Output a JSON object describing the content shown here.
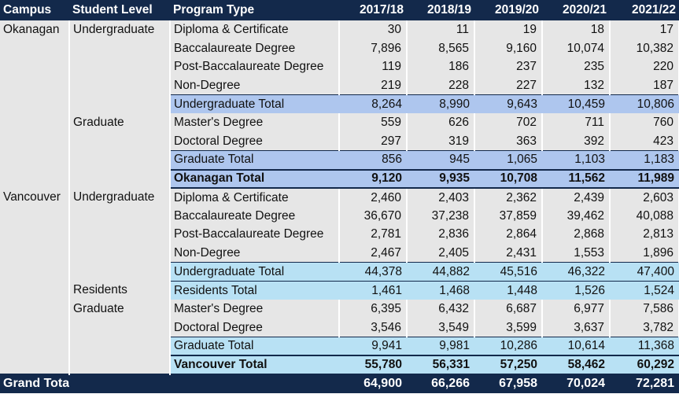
{
  "chart_data": {
    "type": "table",
    "columns": [
      "Campus",
      "Student Level",
      "Program Type",
      "2017/18",
      "2018/19",
      "2019/20",
      "2020/21",
      "2021/22"
    ],
    "rows": [
      {
        "campus": "Okanagan",
        "level": "Undergraduate",
        "program": "Diploma & Certificate",
        "values": [
          "30",
          "11",
          "19",
          "18",
          "17"
        ]
      },
      {
        "campus": "",
        "level": "",
        "program": "Baccalaureate Degree",
        "values": [
          "7,896",
          "8,565",
          "9,160",
          "10,074",
          "10,382"
        ]
      },
      {
        "campus": "",
        "level": "",
        "program": "Post-Baccalaureate Degree",
        "values": [
          "119",
          "186",
          "237",
          "235",
          "220"
        ]
      },
      {
        "campus": "",
        "level": "",
        "program": "Non-Degree",
        "values": [
          "219",
          "228",
          "227",
          "132",
          "187"
        ]
      },
      {
        "campus": "",
        "level": "",
        "program": "Undergraduate Total",
        "values": [
          "8,264",
          "8,990",
          "9,643",
          "10,459",
          "10,806"
        ]
      },
      {
        "campus": "",
        "level": "Graduate",
        "program": "Master's Degree",
        "values": [
          "559",
          "626",
          "702",
          "711",
          "760"
        ]
      },
      {
        "campus": "",
        "level": "",
        "program": "Doctoral Degree",
        "values": [
          "297",
          "319",
          "363",
          "392",
          "423"
        ]
      },
      {
        "campus": "",
        "level": "",
        "program": "Graduate Total",
        "values": [
          "856",
          "945",
          "1,065",
          "1,103",
          "1,183"
        ]
      },
      {
        "campus": "",
        "level": "",
        "program": "Okanagan Total",
        "values": [
          "9,120",
          "9,935",
          "10,708",
          "11,562",
          "11,989"
        ]
      },
      {
        "campus": "Vancouver",
        "level": "Undergraduate",
        "program": "Diploma & Certificate",
        "values": [
          "2,460",
          "2,403",
          "2,362",
          "2,439",
          "2,603"
        ]
      },
      {
        "campus": "",
        "level": "",
        "program": "Baccalaureate Degree",
        "values": [
          "36,670",
          "37,238",
          "37,859",
          "39,462",
          "40,088"
        ]
      },
      {
        "campus": "",
        "level": "",
        "program": "Post-Baccalaureate Degree",
        "values": [
          "2,781",
          "2,836",
          "2,864",
          "2,868",
          "2,813"
        ]
      },
      {
        "campus": "",
        "level": "",
        "program": "Non-Degree",
        "values": [
          "2,467",
          "2,405",
          "2,431",
          "1,553",
          "1,896"
        ]
      },
      {
        "campus": "",
        "level": "",
        "program": "Undergraduate Total",
        "values": [
          "44,378",
          "44,882",
          "45,516",
          "46,322",
          "47,400"
        ]
      },
      {
        "campus": "",
        "level": "Residents",
        "program": "Residents Total",
        "values": [
          "1,461",
          "1,468",
          "1,448",
          "1,526",
          "1,524"
        ]
      },
      {
        "campus": "",
        "level": "Graduate",
        "program": "Master's Degree",
        "values": [
          "6,395",
          "6,432",
          "6,687",
          "6,977",
          "7,586"
        ]
      },
      {
        "campus": "",
        "level": "",
        "program": "Doctoral Degree",
        "values": [
          "3,546",
          "3,549",
          "3,599",
          "3,637",
          "3,782"
        ]
      },
      {
        "campus": "",
        "level": "",
        "program": "Graduate Total",
        "values": [
          "9,941",
          "9,981",
          "10,286",
          "10,614",
          "11,368"
        ]
      },
      {
        "campus": "",
        "level": "",
        "program": "Vancouver Total",
        "values": [
          "55,780",
          "56,331",
          "57,250",
          "58,462",
          "60,292"
        ]
      },
      {
        "campus": "Grand Total",
        "level": "",
        "program": "",
        "values": [
          "64,900",
          "66,266",
          "67,958",
          "70,024",
          "72,281"
        ]
      }
    ],
    "colors": {
      "header_bg": "#13294b",
      "okanagan_total_bg": "#aec6ee",
      "vancouver_total_bg": "#b8e1f4",
      "body_bg": "#e6e6e6"
    }
  }
}
